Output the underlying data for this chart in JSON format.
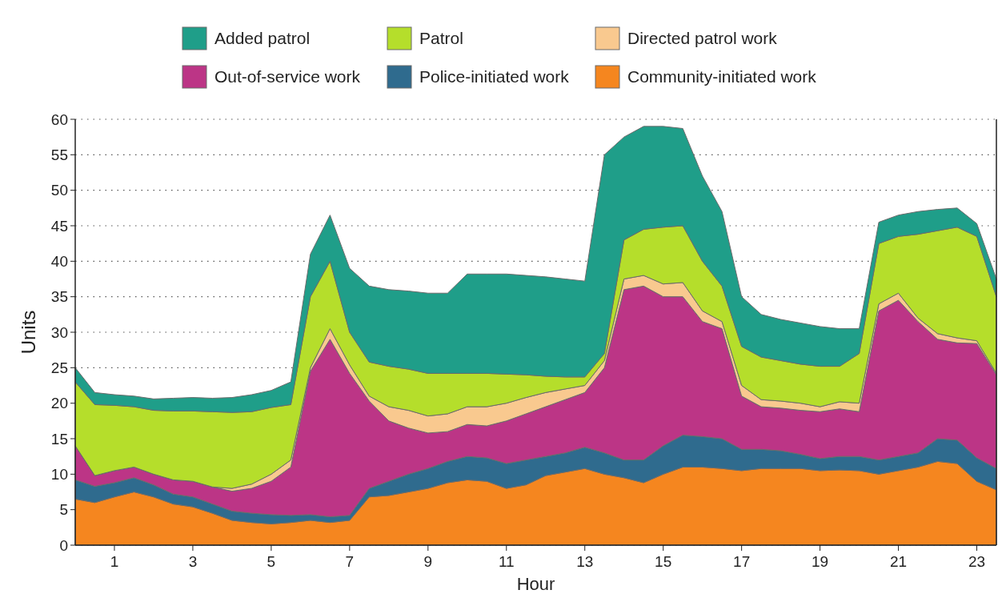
{
  "chart_data": {
    "type": "area",
    "stacked": true,
    "xlabel": "Hour",
    "ylabel": "Units",
    "x": [
      0,
      0.5,
      1,
      1.5,
      2,
      2.5,
      3,
      3.5,
      4,
      4.5,
      5,
      5.5,
      6,
      6.5,
      7,
      7.5,
      8,
      8.5,
      9,
      9.5,
      10,
      10.5,
      11,
      11.5,
      12,
      12.5,
      13,
      13.5,
      14,
      14.5,
      15,
      15.5,
      16,
      16.5,
      17,
      17.5,
      18,
      18.5,
      19,
      19.5,
      20,
      20.5,
      21,
      21.5,
      22,
      22.5,
      23,
      23.5
    ],
    "xlim": [
      0,
      23.5
    ],
    "xticks": [
      1,
      3,
      5,
      7,
      9,
      11,
      13,
      15,
      17,
      19,
      21,
      23
    ],
    "ylim": [
      0,
      60
    ],
    "yticks": [
      0,
      5,
      10,
      15,
      20,
      25,
      30,
      35,
      40,
      45,
      50,
      55,
      60
    ],
    "grid": "y",
    "legend": "top",
    "series": [
      {
        "name": "Community-initiated work",
        "color": "#f5861f",
        "values": [
          6.5,
          6,
          6.8,
          7.5,
          6.8,
          5.8,
          5.4,
          4.5,
          3.5,
          3.2,
          3,
          3.2,
          3.5,
          3.2,
          3.5,
          6.8,
          7,
          7.5,
          8,
          8.8,
          9.2,
          9,
          8,
          8.5,
          9.8,
          10.3,
          10.8,
          10,
          9.5,
          8.8,
          10,
          11,
          11,
          10.8,
          10.5,
          10.8,
          10.8,
          10.8,
          10.5,
          10.6,
          10.5,
          10,
          10.5,
          11,
          11.8,
          11.5,
          9,
          7.8
        ]
      },
      {
        "name": "Police-initiated work",
        "color": "#2f6b8e",
        "values": [
          2.7,
          2.3,
          2,
          2,
          1.7,
          1.4,
          1.4,
          1.3,
          1.3,
          1.3,
          1.3,
          1,
          0.8,
          0.8,
          0.7,
          1.2,
          2,
          2.5,
          2.8,
          3,
          3.3,
          3.3,
          3.5,
          3.5,
          2.7,
          2.7,
          3,
          3,
          2.5,
          3.2,
          4,
          4.5,
          4.3,
          4.2,
          3,
          2.7,
          2.5,
          2,
          1.7,
          1.9,
          2,
          2,
          2,
          2,
          3.2,
          3.3,
          3.3,
          3
        ]
      },
      {
        "name": "Out-of-service work",
        "color": "#bc3586",
        "values": [
          4.8,
          1.5,
          1.7,
          1.5,
          1.5,
          2,
          2.2,
          2.4,
          2.8,
          3.5,
          4.7,
          6.8,
          20.2,
          25,
          20,
          12.3,
          8.5,
          6.5,
          5,
          4.2,
          4.5,
          4.5,
          6,
          6.5,
          7,
          7.5,
          7.7,
          12,
          24,
          24.5,
          21,
          19.5,
          16.2,
          15.5,
          7.5,
          6,
          6,
          6.2,
          6.6,
          6.7,
          6.3,
          21,
          22,
          18.5,
          14,
          13.7,
          16.1,
          13.2
        ]
      },
      {
        "name": "Directed patrol work",
        "color": "#f9c98f",
        "values": [
          0,
          0,
          0,
          0,
          0,
          0,
          0,
          0,
          0.4,
          0.6,
          1,
          1,
          0.5,
          1.5,
          1.2,
          0.7,
          2,
          2.5,
          2.4,
          2.5,
          2.5,
          2.7,
          2.5,
          2.3,
          2,
          1.5,
          1,
          1,
          1.5,
          1.5,
          1.8,
          2,
          1.5,
          1,
          1.5,
          1,
          1,
          1,
          0.7,
          1,
          1.2,
          1,
          1,
          0.5,
          0.8,
          0.7,
          0.4,
          0.2
        ]
      },
      {
        "name": "Patrol",
        "color": "#b5de2b",
        "values": [
          9,
          10,
          9.2,
          8.5,
          9,
          9.7,
          9.9,
          10.6,
          10.7,
          10.2,
          9.4,
          7.8,
          10,
          9.5,
          4.6,
          4.8,
          5.7,
          5.8,
          6,
          5.7,
          4.7,
          4.7,
          4.1,
          3.2,
          2.3,
          1.7,
          1.2,
          1,
          5.5,
          6.5,
          8,
          8,
          7,
          5,
          5.5,
          6,
          5.7,
          5.5,
          5.7,
          5,
          7,
          8.5,
          8,
          11.8,
          14.5,
          15.6,
          14.7,
          10.8
        ]
      },
      {
        "name": "Added patrol",
        "color": "#1f9e89",
        "values": [
          2,
          1.7,
          1.5,
          1.5,
          1.6,
          1.8,
          1.9,
          1.9,
          2.1,
          2.4,
          2.4,
          3.2,
          6,
          6.5,
          9,
          10.7,
          10.8,
          11,
          11.3,
          11.3,
          14,
          14,
          14.1,
          14,
          14,
          13.8,
          13.5,
          28,
          14.5,
          14.5,
          14.2,
          13.7,
          12,
          10.5,
          7,
          6,
          5.8,
          5.8,
          5.6,
          5.3,
          3.5,
          3,
          3,
          3.2,
          3,
          2.7,
          1.8,
          2.5
        ]
      }
    ]
  }
}
